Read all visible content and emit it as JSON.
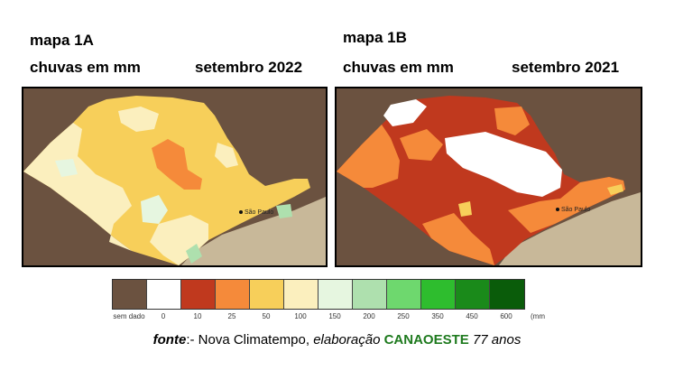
{
  "map_a": {
    "title": "mapa 1A",
    "subtitle": "chuvas em mm",
    "date": "setembro 2022",
    "city_label": "São Paulo"
  },
  "map_b": {
    "title": "mapa 1B",
    "subtitle": "chuvas em mm",
    "date": "setembro 2021",
    "city_label": "São Paulo"
  },
  "legend": {
    "unit": "(mm",
    "colors": [
      "#6b5240",
      "#ffffff",
      "#c0391e",
      "#f58a3a",
      "#f7cf5a",
      "#fbefbe",
      "#e6f6e0",
      "#aee0ae",
      "#6ed86e",
      "#2ebd2e",
      "#1a8a1a",
      "#0a5c0a"
    ],
    "ticks": [
      "sem dado",
      "0",
      "10",
      "25",
      "50",
      "100",
      "150",
      "200",
      "250",
      "350",
      "450",
      "600"
    ]
  },
  "source": {
    "fonte": "fonte",
    "prefix": ":- Nova Climatempo, ",
    "elaboracao": "elaboração",
    "org": "CANAOESTE",
    "suffix": "77 anos"
  }
}
